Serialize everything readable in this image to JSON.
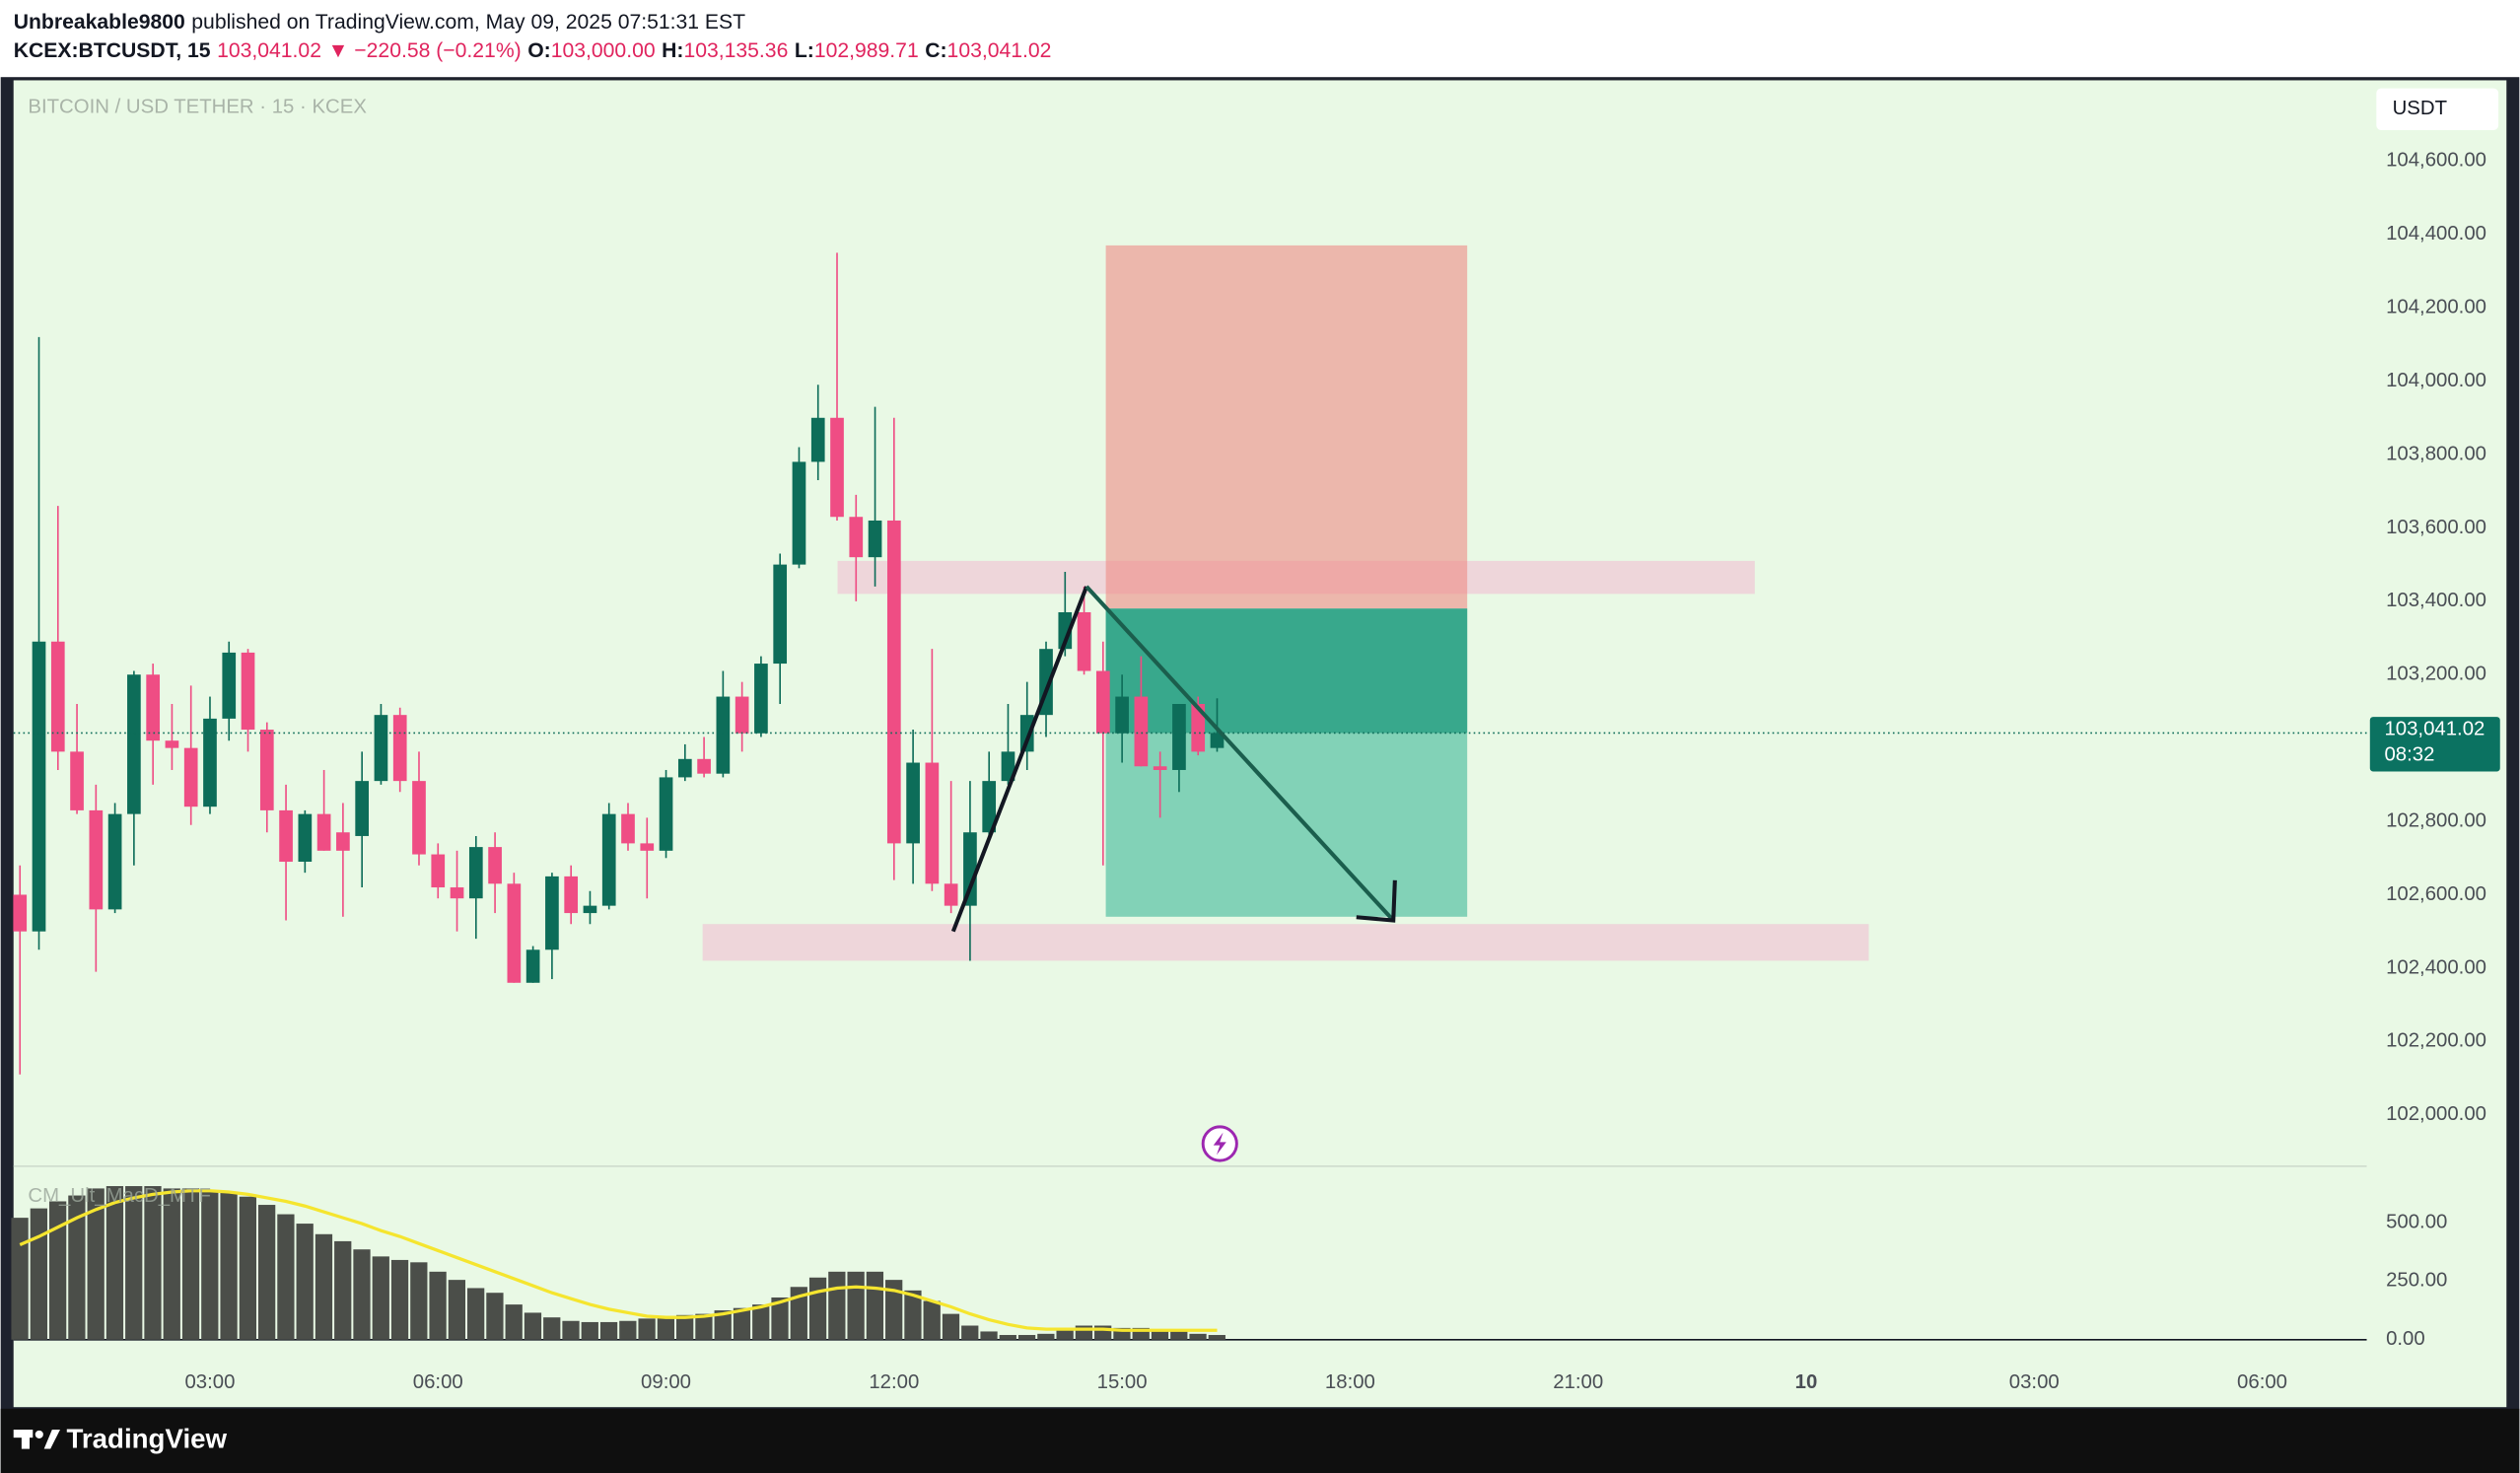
{
  "header": {
    "publisher": "Unbreakable9800",
    "published": "published on TradingView.com, May 09, 2025 07:51:31 EST",
    "symbol": "KCEX:BTCUSDT, 15",
    "last": "103,041.02",
    "change": "▼ −220.58 (−0.21%)",
    "open_label": "O:",
    "open": "103,000.00",
    "high_label": "H:",
    "high": "103,135.36",
    "low_label": "L:",
    "low": "102,989.71",
    "close_label": "C:",
    "close": "103,041.02"
  },
  "footer": {
    "brand": "TradingView"
  },
  "chart_data": {
    "type": "candlestick",
    "title": "BITCOIN / USD TETHER · 15 · KCEX",
    "currency": "USDT",
    "last_price_label": "103,041.02",
    "countdown": "08:32",
    "up_color": "#0d6d59",
    "down_color": "#ef4d84",
    "grid": false,
    "categories": [
      null,
      null,
      null,
      null,
      null,
      null,
      null,
      null,
      null,
      null,
      "03:00",
      null,
      null,
      null,
      null,
      null,
      null,
      null,
      null,
      null,
      null,
      null,
      "06:00",
      null,
      null,
      null,
      null,
      null,
      null,
      null,
      null,
      null,
      null,
      null,
      "09:00",
      null,
      null,
      null,
      null,
      null,
      null,
      null,
      null,
      null,
      null,
      null,
      "12:00",
      null,
      null,
      null,
      null,
      null,
      null,
      null,
      null,
      null,
      null,
      null,
      "15:00",
      null,
      null,
      null,
      null,
      null
    ],
    "future_labels": [
      "18:00",
      "21:00",
      "10",
      "03:00",
      "06:00"
    ],
    "open": [
      102600,
      102500,
      103290,
      102990,
      102830,
      102560,
      102820,
      103200,
      103020,
      103000,
      102840,
      103080,
      103260,
      103050,
      102830,
      102690,
      102820,
      102770,
      102760,
      102910,
      103090,
      102910,
      102710,
      102620,
      102590,
      102730,
      102630,
      102360,
      102450,
      102650,
      102550,
      102570,
      102820,
      102740,
      102720,
      102920,
      102970,
      102930,
      103140,
      103040,
      103230,
      103500,
      103780,
      103900,
      103630,
      103520,
      103620,
      102740,
      102960,
      102630,
      102570,
      102770,
      102910,
      102990,
      103090,
      103270,
      103370,
      103210,
      103040,
      103140,
      102950,
      102940,
      103120,
      103000
    ],
    "high": [
      102680,
      104120,
      103660,
      103120,
      102900,
      102850,
      103210,
      103230,
      103120,
      103170,
      103140,
      103290,
      103270,
      103070,
      102900,
      102830,
      102940,
      102850,
      102990,
      103120,
      103110,
      102990,
      102740,
      102720,
      102760,
      102770,
      102660,
      102460,
      102660,
      102680,
      102610,
      102850,
      102850,
      102810,
      102940,
      103010,
      103030,
      103210,
      103180,
      103250,
      103530,
      103820,
      103990,
      104350,
      103690,
      103930,
      103900,
      103050,
      103270,
      102910,
      102910,
      102990,
      103120,
      103180,
      103290,
      103480,
      103440,
      103290,
      103200,
      103250,
      102990,
      103120,
      103140,
      103135.36
    ],
    "low": [
      102110,
      102450,
      102940,
      102820,
      102390,
      102550,
      102680,
      102900,
      102940,
      102790,
      102820,
      103020,
      102990,
      102770,
      102530,
      102660,
      102720,
      102540,
      102620,
      102900,
      102880,
      102680,
      102590,
      102500,
      102480,
      102550,
      102360,
      102360,
      102370,
      102520,
      102520,
      102560,
      102720,
      102590,
      102700,
      102910,
      102920,
      102920,
      102990,
      103030,
      103120,
      103490,
      103730,
      103620,
      103400,
      103440,
      102640,
      102630,
      102610,
      102550,
      102420,
      102760,
      102900,
      102940,
      103030,
      103250,
      103200,
      102680,
      102960,
      102950,
      102810,
      102880,
      102980,
      102989.71
    ],
    "close": [
      102500,
      103290,
      102990,
      102830,
      102560,
      102820,
      103200,
      103020,
      103000,
      102840,
      103080,
      103260,
      103050,
      102830,
      102690,
      102820,
      102720,
      102720,
      102910,
      103090,
      102910,
      102710,
      102620,
      102590,
      102730,
      102630,
      102360,
      102450,
      102650,
      102550,
      102570,
      102820,
      102740,
      102720,
      102920,
      102970,
      102930,
      103140,
      103040,
      103230,
      103500,
      103780,
      103900,
      103630,
      103520,
      103620,
      102740,
      102960,
      102630,
      102570,
      102770,
      102910,
      102990,
      103090,
      103270,
      103370,
      103210,
      103040,
      103140,
      102950,
      102940,
      103120,
      102990,
      103041.02
    ],
    "ylim": [
      101860,
      104820
    ],
    "yticks": [
      {
        "value": 102000,
        "label": "102,000.00"
      },
      {
        "value": 102200,
        "label": "102,200.00"
      },
      {
        "value": 102400,
        "label": "102,400.00"
      },
      {
        "value": 102600,
        "label": "102,600.00"
      },
      {
        "value": 102800,
        "label": "102,800.00"
      },
      {
        "value": 103000,
        "label": "103,000.00"
      },
      {
        "value": 103200,
        "label": "103,200.00"
      },
      {
        "value": 103400,
        "label": "103,400.00"
      },
      {
        "value": 103600,
        "label": "103,600.00"
      },
      {
        "value": 103800,
        "label": "103,800.00"
      },
      {
        "value": 104000,
        "label": "104,000.00"
      },
      {
        "value": 104200,
        "label": "104,200.00"
      },
      {
        "value": 104400,
        "label": "104,400.00"
      },
      {
        "value": 104600,
        "label": "104,600.00"
      }
    ],
    "position": {
      "stop": 104370,
      "entry": 103380,
      "target": 102540
    },
    "zones": [
      {
        "top": 103510,
        "bottom": 103420
      },
      {
        "top": 102520,
        "bottom": 102420
      }
    ],
    "path": [
      102500,
      103440,
      102530
    ],
    "indicator": {
      "name": "CM_Ult_MacD_MTF",
      "histogram_color": "#4b4e49",
      "signal_color": "#f5e52f",
      "histogram": [
        520,
        560,
        590,
        615,
        645,
        655,
        655,
        655,
        645,
        645,
        635,
        630,
        610,
        575,
        535,
        495,
        450,
        420,
        385,
        355,
        340,
        330,
        290,
        255,
        220,
        200,
        150,
        115,
        95,
        80,
        75,
        75,
        80,
        90,
        95,
        105,
        110,
        125,
        135,
        150,
        180,
        225,
        265,
        290,
        290,
        290,
        255,
        210,
        165,
        110,
        60,
        35,
        20,
        20,
        25,
        40,
        60,
        60,
        50,
        50,
        40,
        35,
        25,
        20
      ],
      "signal": [
        405,
        440,
        480,
        520,
        555,
        585,
        605,
        620,
        630,
        635,
        635,
        630,
        620,
        605,
        590,
        570,
        545,
        520,
        495,
        465,
        440,
        410,
        380,
        350,
        320,
        290,
        260,
        230,
        200,
        175,
        150,
        130,
        115,
        100,
        95,
        95,
        100,
        110,
        125,
        140,
        160,
        185,
        205,
        220,
        225,
        220,
        210,
        190,
        165,
        140,
        110,
        85,
        65,
        50,
        45,
        45,
        45,
        45,
        40,
        40,
        40,
        40,
        40,
        40
      ],
      "ylim": [
        0,
        740
      ],
      "yticks": [
        {
          "value": 0,
          "label": "0.00"
        },
        {
          "value": 250,
          "label": "250.00"
        },
        {
          "value": 500,
          "label": "500.00"
        }
      ]
    }
  }
}
